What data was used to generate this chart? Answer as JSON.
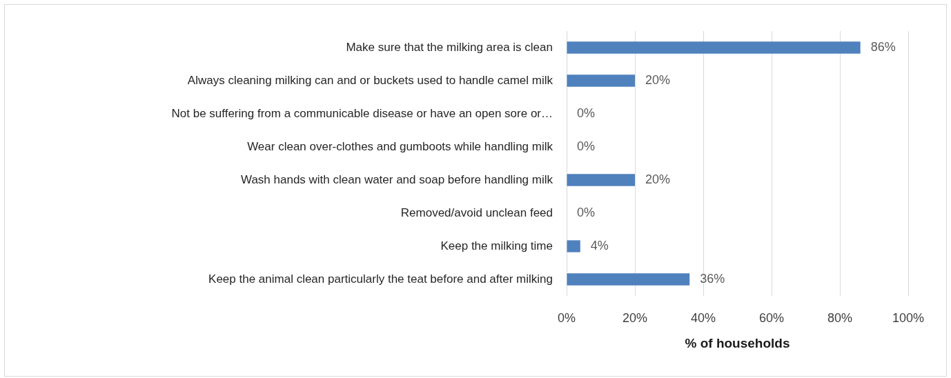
{
  "chart_data": {
    "type": "bar",
    "orientation": "horizontal",
    "categories": [
      "Make sure that the milking area is clean",
      "Always cleaning milking can and or buckets used to handle camel milk",
      "Not be suffering from a communicable disease or have an open sore or…",
      "Wear clean over-clothes and gumboots while handling milk",
      "Wash hands with clean water and soap before handling milk",
      "Removed/avoid unclean feed",
      "Keep the milking time",
      "Keep the animal clean particularly the teat before and after milking"
    ],
    "values": [
      86,
      20,
      0,
      0,
      20,
      0,
      4,
      36
    ],
    "color": "#4f81bd",
    "value_labels": [
      "86%",
      "20%",
      "0%",
      "0%",
      "20%",
      "0%",
      "4%",
      "36%"
    ],
    "xlabel": "% of households",
    "xlim": [
      0,
      100
    ],
    "xticks": [
      {
        "value": 0,
        "label": "0%"
      },
      {
        "value": 20,
        "label": "20%"
      },
      {
        "value": 40,
        "label": "40%"
      },
      {
        "value": 60,
        "label": "60%"
      },
      {
        "value": 80,
        "label": "80%"
      },
      {
        "value": 100,
        "label": "100%"
      }
    ],
    "grid": "x"
  }
}
